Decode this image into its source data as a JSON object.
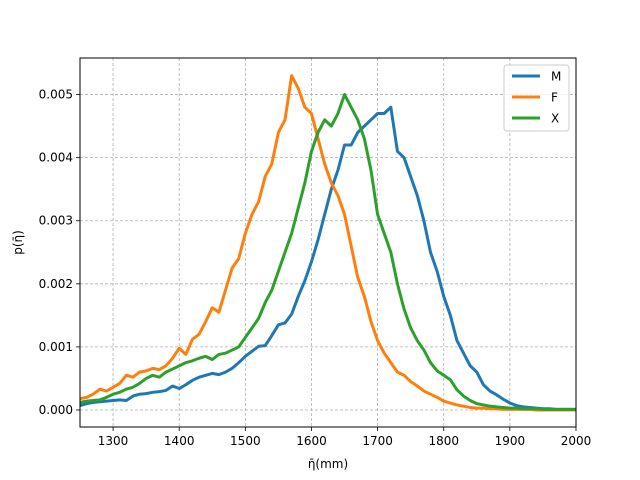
{
  "chart_data": {
    "type": "line",
    "title": "",
    "xlabel": "η̄(mm)",
    "ylabel": "p(η̄)",
    "xlim": [
      1250,
      2000
    ],
    "ylim": [
      -0.00027,
      0.00558
    ],
    "xticks": [
      1300,
      1400,
      1500,
      1600,
      1700,
      1800,
      1900,
      2000
    ],
    "xtick_labels": [
      "1300",
      "1400",
      "1500",
      "1600",
      "1700",
      "1800",
      "1900",
      "2000"
    ],
    "yticks": [
      0.0,
      0.001,
      0.002,
      0.003,
      0.004,
      0.005
    ],
    "ytick_labels": [
      "0.000",
      "0.001",
      "0.002",
      "0.003",
      "0.004",
      "0.005"
    ],
    "grid": true,
    "legend": "top-right",
    "series": [
      {
        "name": "M",
        "color": "#1f77b4",
        "x": [
          1250,
          1260,
          1270,
          1280,
          1290,
          1300,
          1310,
          1320,
          1330,
          1340,
          1350,
          1360,
          1370,
          1380,
          1390,
          1400,
          1410,
          1420,
          1430,
          1440,
          1450,
          1460,
          1470,
          1480,
          1490,
          1500,
          1510,
          1520,
          1530,
          1540,
          1550,
          1560,
          1570,
          1580,
          1590,
          1600,
          1610,
          1620,
          1630,
          1640,
          1650,
          1660,
          1670,
          1680,
          1690,
          1700,
          1710,
          1720,
          1730,
          1740,
          1750,
          1760,
          1770,
          1780,
          1790,
          1800,
          1810,
          1820,
          1830,
          1840,
          1850,
          1860,
          1870,
          1880,
          1890,
          1900,
          1910,
          1920,
          1930,
          1940,
          1950,
          1960,
          1970,
          1980,
          1990,
          2000
        ],
        "y": [
          7e-05,
          0.0001,
          0.00012,
          0.00013,
          0.00014,
          0.00015,
          0.00016,
          0.00015,
          0.00022,
          0.00025,
          0.00026,
          0.00028,
          0.00029,
          0.00031,
          0.00038,
          0.00034,
          0.0004,
          0.00047,
          0.00052,
          0.00055,
          0.00058,
          0.00056,
          0.0006,
          0.00066,
          0.00075,
          0.00085,
          0.00093,
          0.00101,
          0.00102,
          0.00118,
          0.00135,
          0.00138,
          0.00152,
          0.0018,
          0.00205,
          0.00235,
          0.0027,
          0.0031,
          0.0035,
          0.0038,
          0.0042,
          0.0042,
          0.0044,
          0.0045,
          0.0046,
          0.0047,
          0.0047,
          0.0048,
          0.0041,
          0.004,
          0.0037,
          0.0034,
          0.003,
          0.0025,
          0.0022,
          0.0018,
          0.0015,
          0.0011,
          0.0009,
          0.0007,
          0.0006,
          0.0004,
          0.0003,
          0.00024,
          0.00017,
          0.00011,
          7e-05,
          5e-05,
          4e-05,
          3e-05,
          2e-05,
          2e-05,
          1e-05,
          1e-05,
          1e-05,
          1e-05
        ]
      },
      {
        "name": "F",
        "color": "#ff7f0e",
        "x": [
          1250,
          1260,
          1270,
          1280,
          1290,
          1300,
          1310,
          1320,
          1330,
          1340,
          1350,
          1360,
          1370,
          1380,
          1390,
          1400,
          1410,
          1420,
          1430,
          1440,
          1450,
          1460,
          1470,
          1480,
          1490,
          1500,
          1510,
          1520,
          1530,
          1540,
          1550,
          1560,
          1570,
          1580,
          1590,
          1600,
          1610,
          1620,
          1630,
          1640,
          1650,
          1660,
          1670,
          1680,
          1690,
          1700,
          1710,
          1720,
          1730,
          1740,
          1750,
          1760,
          1770,
          1780,
          1790,
          1800,
          1810,
          1820,
          1830,
          1840,
          1850,
          1860,
          1870,
          1880,
          1890,
          1900,
          1910,
          1920,
          1930,
          1940,
          1950,
          1960,
          1970,
          1980,
          1990,
          2000
        ],
        "y": [
          0.00018,
          0.0002,
          0.00025,
          0.00033,
          0.0003,
          0.00036,
          0.00042,
          0.00055,
          0.00052,
          0.0006,
          0.00062,
          0.00066,
          0.00064,
          0.0007,
          0.00082,
          0.00098,
          0.00088,
          0.00112,
          0.0012,
          0.0014,
          0.00162,
          0.00155,
          0.0019,
          0.00225,
          0.0024,
          0.0028,
          0.0031,
          0.0033,
          0.0037,
          0.0039,
          0.0044,
          0.0046,
          0.0053,
          0.0051,
          0.0048,
          0.0047,
          0.0043,
          0.0039,
          0.0036,
          0.0034,
          0.0031,
          0.0026,
          0.0021,
          0.0018,
          0.0014,
          0.0011,
          0.0009,
          0.00075,
          0.0006,
          0.00055,
          0.00045,
          0.00038,
          0.0003,
          0.00025,
          0.0002,
          0.00014,
          0.00011,
          8e-05,
          6e-05,
          4e-05,
          3e-05,
          3e-05,
          2e-05,
          2e-05,
          1e-05,
          1e-05,
          1e-05,
          1e-05,
          1e-05,
          0.0,
          0.0,
          0.0,
          0.0,
          0.0,
          0.0,
          0.0
        ]
      },
      {
        "name": "X",
        "color": "#2ca02c",
        "x": [
          1250,
          1260,
          1270,
          1280,
          1290,
          1300,
          1310,
          1320,
          1330,
          1340,
          1350,
          1360,
          1370,
          1380,
          1390,
          1400,
          1410,
          1420,
          1430,
          1440,
          1450,
          1460,
          1470,
          1480,
          1490,
          1500,
          1510,
          1520,
          1530,
          1540,
          1550,
          1560,
          1570,
          1580,
          1590,
          1600,
          1610,
          1620,
          1630,
          1640,
          1650,
          1660,
          1670,
          1680,
          1690,
          1700,
          1710,
          1720,
          1730,
          1740,
          1750,
          1760,
          1770,
          1780,
          1790,
          1800,
          1810,
          1820,
          1830,
          1840,
          1850,
          1860,
          1870,
          1880,
          1890,
          1900,
          1910,
          1920,
          1930,
          1940,
          1950,
          1960,
          1970,
          1980,
          1990,
          2000
        ],
        "y": [
          0.00012,
          0.00014,
          0.00015,
          0.00016,
          0.0002,
          0.00025,
          0.00028,
          0.00033,
          0.00036,
          0.00042,
          0.0005,
          0.00055,
          0.00052,
          0.0006,
          0.00065,
          0.0007,
          0.00075,
          0.00078,
          0.00082,
          0.00085,
          0.0008,
          0.00088,
          0.0009,
          0.00095,
          0.001,
          0.00115,
          0.0013,
          0.00145,
          0.0017,
          0.0019,
          0.0022,
          0.0025,
          0.0028,
          0.0032,
          0.0036,
          0.0041,
          0.0044,
          0.0046,
          0.0045,
          0.0047,
          0.005,
          0.0048,
          0.0046,
          0.0043,
          0.0038,
          0.0031,
          0.0028,
          0.0025,
          0.002,
          0.0016,
          0.0013,
          0.0011,
          0.00095,
          0.00075,
          0.00062,
          0.00055,
          0.00048,
          0.00032,
          0.00022,
          0.00015,
          0.0001,
          8e-05,
          6e-05,
          5e-05,
          4e-05,
          3e-05,
          3e-05,
          2e-05,
          2e-05,
          2e-05,
          1e-05,
          1e-05,
          1e-05,
          1e-05,
          1e-05,
          1e-05
        ]
      }
    ]
  }
}
